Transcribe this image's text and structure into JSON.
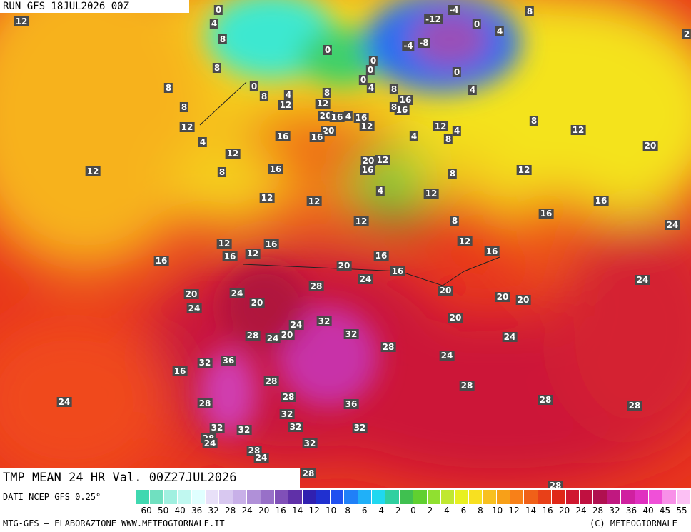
{
  "header": {
    "run": "RUN GFS 18JUL2026 00Z",
    "field": "TMP MEAN 24 HR Val. 00Z27JUL2026"
  },
  "footer": {
    "source": "DATI NCEP GFS 0.25°",
    "credit": "MTG-GFS — ELABORAZIONE WWW.METEOGIORNALE.IT",
    "copyright": "(C) METEOGIORNALE"
  },
  "scale": {
    "labels": [
      -60,
      -50,
      -40,
      -36,
      -32,
      -28,
      -24,
      -20,
      -16,
      -14,
      -12,
      -10,
      -8,
      -6,
      -4,
      -2,
      0,
      2,
      4,
      6,
      8,
      10,
      12,
      14,
      16,
      20,
      24,
      28,
      32,
      36,
      40,
      45,
      55
    ]
  },
  "map_labels": [
    12,
    0,
    4,
    8,
    8,
    8,
    8,
    12,
    4,
    0,
    8,
    4,
    12,
    0,
    0,
    0,
    0,
    8,
    12,
    20,
    16,
    4,
    16,
    12,
    4,
    8,
    16,
    16,
    8,
    20,
    16,
    16,
    12,
    8,
    16,
    12,
    20,
    12,
    16,
    4,
    12,
    4,
    8,
    8,
    -12,
    -4,
    0,
    4,
    8,
    -4,
    -8,
    0,
    4,
    8,
    12,
    20,
    12,
    4,
    12,
    8,
    12,
    16,
    16,
    16,
    24,
    24,
    2,
    12,
    12,
    12,
    12,
    16,
    12,
    16,
    16,
    20,
    16,
    16,
    24,
    20,
    24,
    24,
    20,
    28,
    20,
    20,
    20,
    20,
    24,
    20,
    24,
    28,
    32,
    32,
    28,
    24,
    24,
    36,
    32,
    16,
    28,
    28,
    32,
    36,
    28,
    28,
    28,
    28,
    24,
    32,
    32,
    32,
    32,
    28,
    24,
    32,
    28,
    24,
    28,
    28
  ]
}
